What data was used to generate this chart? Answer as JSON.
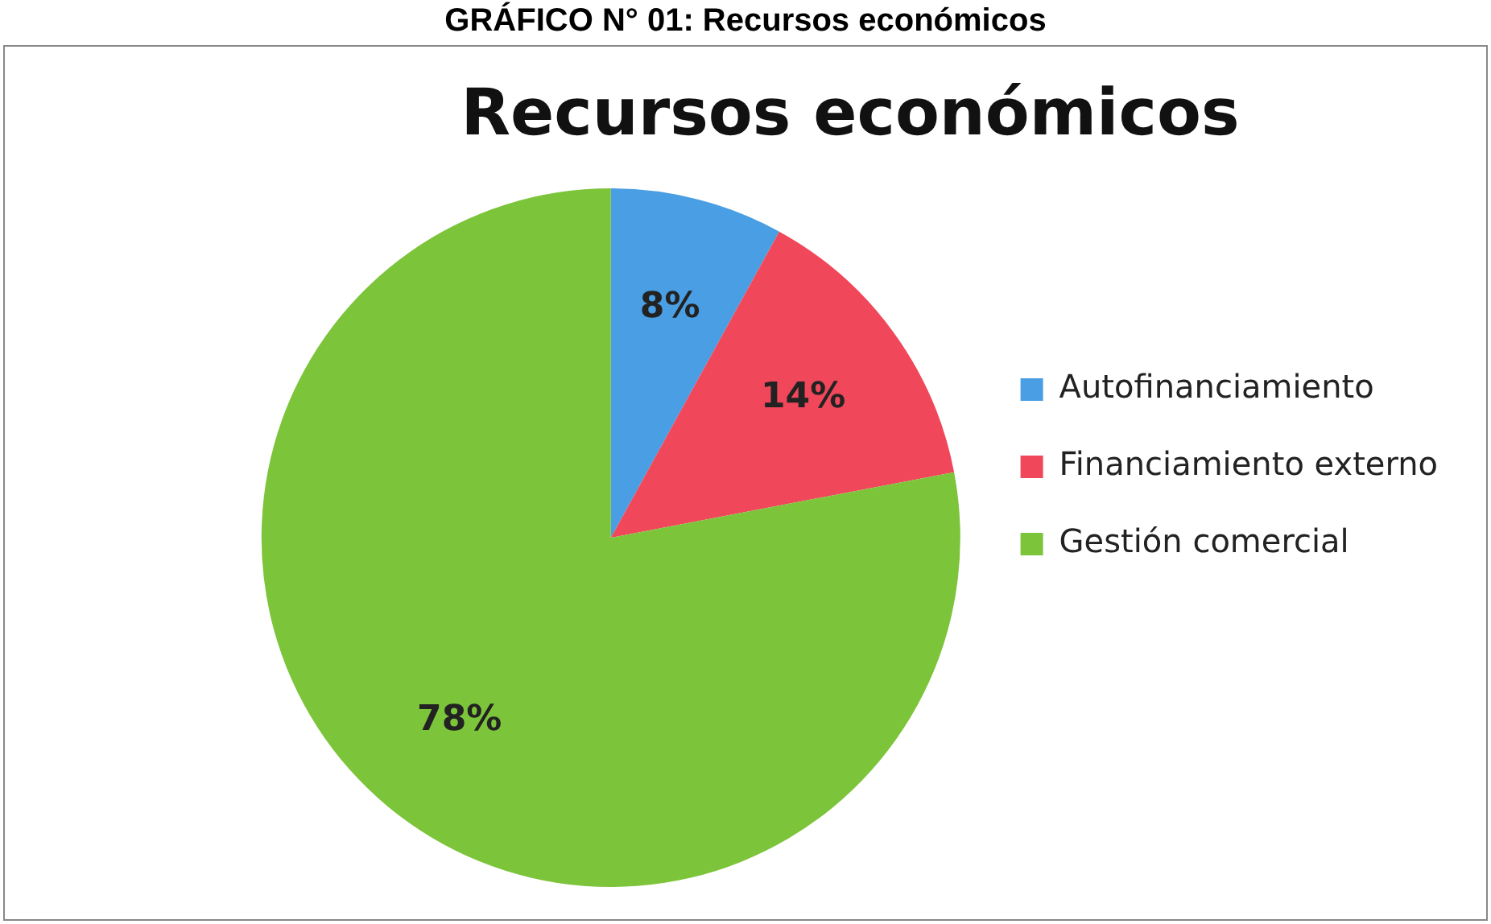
{
  "chart_data": {
    "type": "pie",
    "title": "Recursos económicos",
    "annotations": [
      "GRÁFICO N° 01: Recursos económicos"
    ],
    "categories": [
      "Autofinanciamiento",
      "Financiamiento externo",
      "Gestión comercial"
    ],
    "values": [
      8,
      14,
      78
    ],
    "value_labels": [
      "8%",
      "14%",
      "78%"
    ],
    "colors": [
      "#4a9ee3",
      "#f0475a",
      "#7cc43a"
    ],
    "legend": "right"
  }
}
